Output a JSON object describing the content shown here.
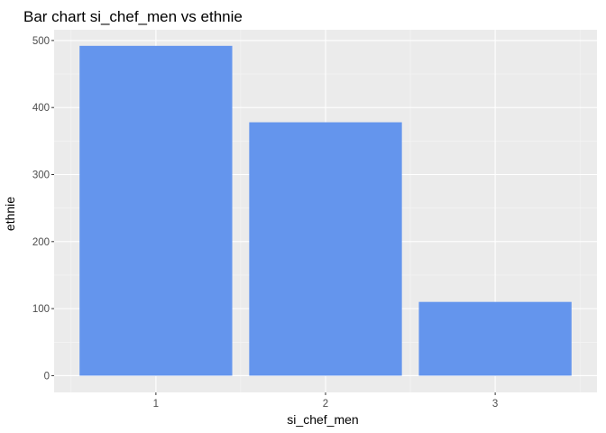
{
  "chart_data": {
    "type": "bar",
    "title": "Bar chart si_chef_men vs ethnie",
    "xlabel": "si_chef_men",
    "ylabel": "ethnie",
    "categories": [
      "1",
      "2",
      "3"
    ],
    "values": [
      492,
      378,
      110
    ],
    "ylim": [
      -25,
      516
    ],
    "yticks": [
      0,
      100,
      200,
      300,
      400,
      500
    ],
    "grid": true,
    "legend": "none",
    "colors": {
      "bar": "#6495ED",
      "panel": "#EBEBEB",
      "grid_major": "#FFFFFF",
      "grid_minor": "#F5F5F5",
      "tick_text": "#4D4D4D",
      "tick_mark": "#333333"
    }
  }
}
